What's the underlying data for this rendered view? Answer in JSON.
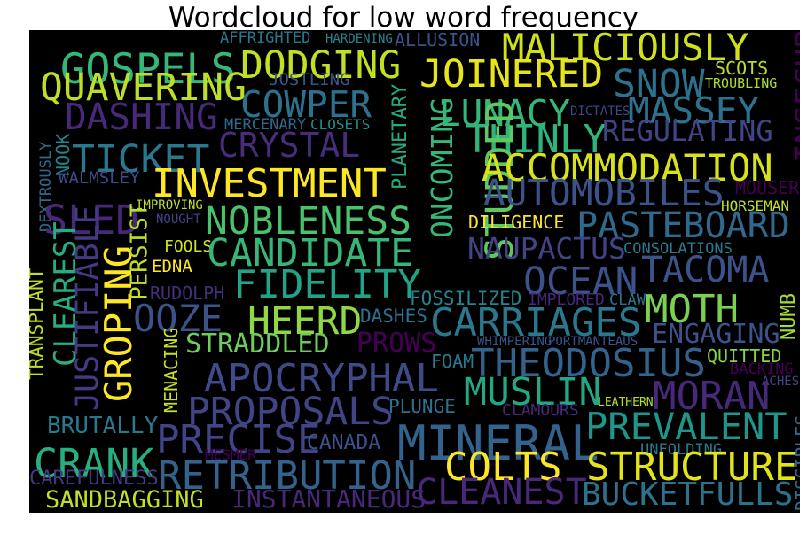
{
  "title": "Wordcloud for low word frequency",
  "chart_data": {
    "type": "wordcloud",
    "title": "Wordcloud for low word frequency",
    "background": "#000000",
    "colormap": "viridis",
    "words": [
      {
        "text": "GOSPELS",
        "color": "#35b779"
      },
      {
        "text": "DODGING",
        "color": "#c2df23"
      },
      {
        "text": "MALICIOUSLY",
        "color": "#d0e11c"
      },
      {
        "text": "QUAVERING",
        "color": "#bddf26"
      },
      {
        "text": "JOINERED",
        "color": "#e7e419"
      },
      {
        "text": "SNOW",
        "color": "#2c728e"
      },
      {
        "text": "SCOTS",
        "color": "#b5de2b"
      },
      {
        "text": "TROUBLING",
        "color": "#addc30"
      },
      {
        "text": "INSECURE",
        "color": "#440154"
      },
      {
        "text": "AFFRIGHTED",
        "color": "#2a788e"
      },
      {
        "text": "HARDENING",
        "color": "#25858e"
      },
      {
        "text": "ALLUSION",
        "color": "#3b528b"
      },
      {
        "text": "JOSTLING",
        "color": "#3b528b"
      },
      {
        "text": "COWPER",
        "color": "#2c728e"
      },
      {
        "text": "LUNACY",
        "color": "#35b779"
      },
      {
        "text": "MASSEY",
        "color": "#2c728e"
      },
      {
        "text": "DASHING",
        "color": "#482878"
      },
      {
        "text": "MERCENARY",
        "color": "#31688e"
      },
      {
        "text": "CLOSETS",
        "color": "#21918c"
      },
      {
        "text": "PLANETARY",
        "color": "#25ab82"
      },
      {
        "text": "DICTATES",
        "color": "#414487"
      },
      {
        "text": "THINLY",
        "color": "#2fb47c"
      },
      {
        "text": "REGULATING",
        "color": "#414487"
      },
      {
        "text": "NOOK",
        "color": "#25858e"
      },
      {
        "text": "TICKET",
        "color": "#2a788e"
      },
      {
        "text": "CRYSTAL",
        "color": "#472d7b"
      },
      {
        "text": "ONCOMING",
        "color": "#35b779"
      },
      {
        "text": "STUDDED",
        "color": "#5ec962"
      },
      {
        "text": "ACCOMMODATION",
        "color": "#d8e219"
      },
      {
        "text": "DEXTROUSLY",
        "color": "#31688e"
      },
      {
        "text": "WALMSLEY",
        "color": "#3e4a89"
      },
      {
        "text": "INVESTMENT",
        "color": "#fde725"
      },
      {
        "text": "AUTOMOBILES",
        "color": "#3b528b"
      },
      {
        "text": "MOUSER",
        "color": "#440154"
      },
      {
        "text": "SLED",
        "color": "#482878"
      },
      {
        "text": "IMPROVING",
        "color": "#bddf26"
      },
      {
        "text": "NOUGHT",
        "color": "#414487"
      },
      {
        "text": "NOBLENESS",
        "color": "#4ac16d"
      },
      {
        "text": "DILIGENCE",
        "color": "#fde725"
      },
      {
        "text": "PASTEBOARD",
        "color": "#31688e"
      },
      {
        "text": "HORSEMAN",
        "color": "#c2df23"
      },
      {
        "text": "TRANSPLANT",
        "color": "#c2df23"
      },
      {
        "text": "CLEAREST",
        "color": "#26ad81"
      },
      {
        "text": "JUSTIFIABLE",
        "color": "#443983"
      },
      {
        "text": "GROPING",
        "color": "#fde725"
      },
      {
        "text": "PERSIST",
        "color": "#bddf26"
      },
      {
        "text": "FOOLS",
        "color": "#d2e21b"
      },
      {
        "text": "CANDIDATE",
        "color": "#35b779"
      },
      {
        "text": "NAUPACTUS",
        "color": "#414487"
      },
      {
        "text": "CONSOLATIONS",
        "color": "#2a788e"
      },
      {
        "text": "TACOMA",
        "color": "#3b528b"
      },
      {
        "text": "EDNA",
        "color": "#fde725"
      },
      {
        "text": "FIDELITY",
        "color": "#20a386"
      },
      {
        "text": "OCEAN",
        "color": "#3b528b"
      },
      {
        "text": "RUDOLPH",
        "color": "#472d7b"
      },
      {
        "text": "FOSSILIZED",
        "color": "#25848e"
      },
      {
        "text": "IMPLORED",
        "color": "#482878"
      },
      {
        "text": "CLAW",
        "color": "#2c728e"
      },
      {
        "text": "MOTH",
        "color": "#7ad151"
      },
      {
        "text": "NUMB",
        "color": "#a5db36"
      },
      {
        "text": "OOZE",
        "color": "#3b528b"
      },
      {
        "text": "HEERD",
        "color": "#90d743"
      },
      {
        "text": "CARRIAGES",
        "color": "#2a788e"
      },
      {
        "text": "MENACING",
        "color": "#c8e020"
      },
      {
        "text": "STRADDLED",
        "color": "#6ccd5a"
      },
      {
        "text": "DASHES",
        "color": "#2c728e"
      },
      {
        "text": "PROWS",
        "color": "#440154"
      },
      {
        "text": "WHIMPERING",
        "color": "#3b528b"
      },
      {
        "text": "PORTMANTEAUS",
        "color": "#3b528b"
      },
      {
        "text": "ENGAGING",
        "color": "#3b528b"
      },
      {
        "text": "QUITTED",
        "color": "#84d44b"
      },
      {
        "text": "BACKING",
        "color": "#440154"
      },
      {
        "text": "ACHES",
        "color": "#414487"
      },
      {
        "text": "FOAM",
        "color": "#2a788e"
      },
      {
        "text": "APOCRYPHAL",
        "color": "#3e4a89"
      },
      {
        "text": "THEODOSIUS",
        "color": "#33638d"
      },
      {
        "text": "MUSLIN",
        "color": "#22a884"
      },
      {
        "text": "MORAN",
        "color": "#482878"
      },
      {
        "text": "PROPOSALS",
        "color": "#414487"
      },
      {
        "text": "PLUNGE",
        "color": "#2c728e"
      },
      {
        "text": "CLAMOURS",
        "color": "#482878"
      },
      {
        "text": "LEATHERN",
        "color": "#b5de2b"
      },
      {
        "text": "BRUTALLY",
        "color": "#2a788e"
      },
      {
        "text": "PRECISE",
        "color": "#414487"
      },
      {
        "text": "MINERAL",
        "color": "#33638d"
      },
      {
        "text": "PREVALENT",
        "color": "#1f968b"
      },
      {
        "text": "CANADA",
        "color": "#3b528b"
      },
      {
        "text": "UNFOLDING",
        "color": "#2a788e"
      },
      {
        "text": "DISCIPLES",
        "color": "#31688e"
      },
      {
        "text": "CRANK",
        "color": "#29af7f"
      },
      {
        "text": "MESMER",
        "color": "#440154"
      },
      {
        "text": "RETRIBUTION",
        "color": "#33638d"
      },
      {
        "text": "COLTS",
        "color": "#fde725"
      },
      {
        "text": "STRUCTURE",
        "color": "#e2e418"
      },
      {
        "text": "CAREFULNESS",
        "color": "#443983"
      },
      {
        "text": "SANDBAGGING",
        "color": "#c2df23"
      },
      {
        "text": "INSTANTANEOUS",
        "color": "#482878"
      },
      {
        "text": "CLEANEST",
        "color": "#482878"
      },
      {
        "text": "BUCKETFULLS",
        "color": "#2c728e"
      }
    ]
  }
}
